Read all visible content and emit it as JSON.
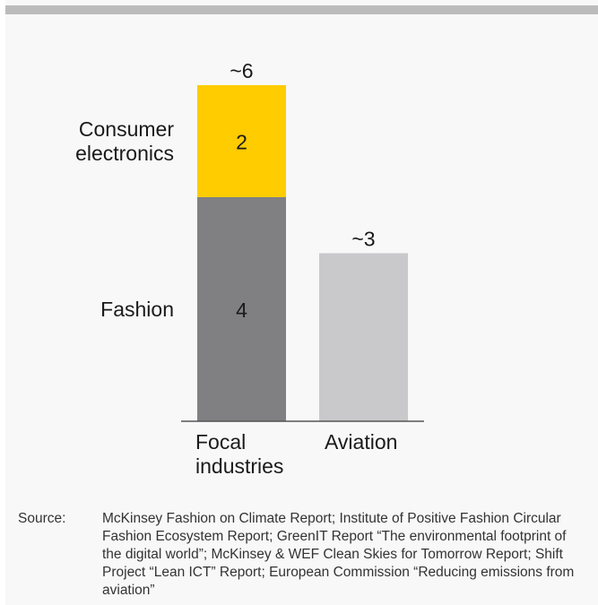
{
  "colors": {
    "consumer_electronics": "#ffcc00",
    "fashion": "#808083",
    "aviation": "#c9c9cb",
    "background": "#f8f8f8",
    "top_rule": "#bcbcbc"
  },
  "chart_data": {
    "type": "bar",
    "stacked": true,
    "categories": [
      "Focal industries",
      "Aviation"
    ],
    "category_labels": [
      [
        "Focal",
        "industries"
      ],
      [
        "Aviation"
      ]
    ],
    "series": [
      {
        "name": "Fashion",
        "label_lines": [
          "Fashion"
        ],
        "values": [
          4,
          0
        ],
        "data_labels": [
          "4",
          ""
        ],
        "color": "#808083"
      },
      {
        "name": "Consumer electronics",
        "label_lines": [
          "Consumer",
          "electronics"
        ],
        "values": [
          2,
          0
        ],
        "data_labels": [
          "2",
          ""
        ],
        "color": "#ffcc00"
      },
      {
        "name": "Aviation",
        "label_lines": [],
        "values": [
          0,
          3
        ],
        "data_labels": [
          "",
          ""
        ],
        "color": "#c9c9cb"
      }
    ],
    "totals": [
      6,
      3
    ],
    "total_labels": [
      "~6",
      "~3"
    ],
    "ylim": [
      0,
      6
    ],
    "grid": false,
    "title": "",
    "xlabel": "",
    "ylabel": ""
  },
  "source": {
    "label": "Source:",
    "text": "McKinsey Fashion on Climate Report; Institute of Positive Fashion Circular Fashion Ecosystem Report; GreenIT Report “The environmental footprint of the digital world”; McKinsey & WEF Clean Skies for Tomorrow Report; Shift Project “Lean ICT” Report; European Commission “Reducing emissions from aviation”"
  }
}
